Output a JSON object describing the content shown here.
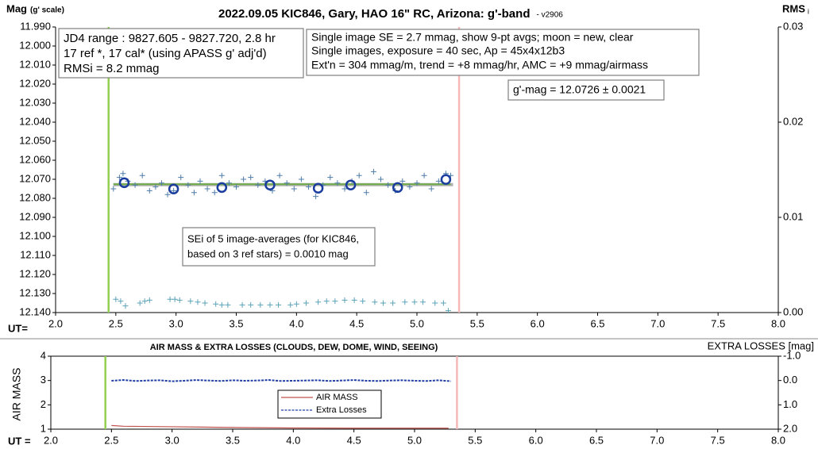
{
  "chart_data": [
    {
      "type": "scatter",
      "title": "2022.09.05 KIC846, Gary, HAO 16\" RC, Arizona: g'-band",
      "subtitle": "- v2906",
      "y_label": "Mag",
      "y_label_note": "(g' scale)",
      "y2_label": "RMS",
      "y2_label_sub": "i",
      "x_label": "UT=",
      "xlim": [
        2.0,
        8.0
      ],
      "xticks": [
        {
          "value": 2.0,
          "label": "2.0"
        },
        2.5,
        {
          "value": 3.0,
          "label": "3.0"
        },
        3.5,
        {
          "value": 4.0,
          "label": "4.0"
        },
        4.5,
        {
          "value": 5.0,
          "label": "5.0"
        },
        5.5,
        {
          "value": 6.0,
          "label": "6.0"
        },
        6.5,
        {
          "value": 7.0,
          "label": "7.0"
        },
        7.5,
        {
          "value": 8.0,
          "label": "8.0"
        }
      ],
      "ylim": [
        11.99,
        12.14
      ],
      "y_inverted": true,
      "yticks": [
        {
          "value": 11.99,
          "label": "11.990"
        },
        {
          "value": 12.0,
          "label": "12.000"
        },
        {
          "value": 12.01,
          "label": "12.010"
        },
        {
          "value": 12.02,
          "label": "12.020"
        },
        {
          "value": 12.03,
          "label": "12.030"
        },
        {
          "value": 12.04,
          "label": "12.040"
        },
        {
          "value": 12.05,
          "label": "12.050"
        },
        {
          "value": 12.06,
          "label": "12.060"
        },
        {
          "value": 12.07,
          "label": "12.070"
        },
        {
          "value": 12.08,
          "label": "12.080"
        },
        {
          "value": 12.09,
          "label": "12.090"
        },
        {
          "value": 12.1,
          "label": "12.100"
        },
        {
          "value": 12.11,
          "label": "12.110"
        },
        {
          "value": 12.12,
          "label": "12.120"
        },
        {
          "value": 12.13,
          "label": "12.130"
        },
        {
          "value": 12.14,
          "label": "12.140"
        }
      ],
      "y2lim": [
        0,
        0.03
      ],
      "y2ticks": [
        {
          "value": 0.03,
          "label": "0.03"
        },
        {
          "value": 0.02,
          "label": "0.02"
        },
        {
          "value": 0.01,
          "label": "0.01"
        },
        {
          "value": 0,
          "label": "0.00"
        }
      ],
      "vlines": [
        {
          "x": 2.44,
          "color": "#92d050"
        },
        {
          "x": 5.35,
          "color": "#f4b8b8"
        }
      ],
      "series": [
        {
          "marker": "line",
          "color": "#b0b0b0",
          "width": 4,
          "x": [
            2.48,
            5.3
          ],
          "values": [
            12.0728,
            12.0728
          ]
        },
        {
          "marker": "line",
          "color": "#70ad47",
          "width": 2,
          "x": [
            2.48,
            5.28
          ],
          "values": [
            12.0726,
            12.0726
          ]
        },
        {
          "marker": "plus",
          "color": "#4f7ca8",
          "x": [
            2.48,
            2.53,
            2.56,
            2.6,
            2.66,
            2.72,
            2.78,
            2.83,
            2.88,
            2.93,
            2.98,
            3.04,
            3.1,
            3.15,
            3.2,
            3.26,
            3.32,
            3.38,
            3.44,
            3.5,
            3.56,
            3.62,
            3.68,
            3.74,
            3.8,
            3.86,
            3.92,
            3.98,
            4.04,
            4.1,
            4.16,
            4.22,
            4.28,
            4.34,
            4.4,
            4.46,
            4.52,
            4.58,
            4.64,
            4.7,
            4.76,
            4.82,
            4.88,
            4.94,
            5.0,
            5.06,
            5.12,
            5.18,
            5.24,
            5.28
          ],
          "values": [
            12.075,
            12.069,
            12.067,
            12.071,
            12.073,
            12.068,
            12.076,
            12.074,
            12.072,
            12.078,
            12.076,
            12.069,
            12.073,
            12.077,
            12.071,
            12.075,
            12.077,
            12.068,
            12.072,
            12.074,
            12.07,
            12.069,
            12.073,
            12.071,
            12.076,
            12.068,
            12.072,
            12.075,
            12.07,
            12.074,
            12.079,
            12.073,
            12.069,
            12.072,
            12.075,
            12.071,
            12.068,
            12.077,
            12.066,
            12.07,
            12.073,
            12.076,
            12.071,
            12.074,
            12.072,
            12.068,
            12.075,
            12.071,
            12.067,
            12.068
          ]
        },
        {
          "marker": "circle",
          "color": "#1a3d9e",
          "x": [
            2.57,
            2.98,
            3.38,
            3.78,
            4.18,
            4.45,
            4.84,
            5.24
          ],
          "values": [
            12.0718,
            12.0751,
            12.0743,
            12.073,
            12.0747,
            12.073,
            12.0743,
            12.0701
          ]
        },
        {
          "marker": "plus",
          "color": "#5ba3b8",
          "axis": "y2",
          "x": [
            2.5,
            2.54,
            2.58,
            2.7,
            2.74,
            2.78,
            2.95,
            2.99,
            3.03,
            3.12,
            3.18,
            3.24,
            3.33,
            3.38,
            3.43,
            3.55,
            3.62,
            3.7,
            3.78,
            3.85,
            3.95,
            4.0,
            4.08,
            4.18,
            4.25,
            4.32,
            4.4,
            4.48,
            4.55,
            4.65,
            4.72,
            4.8,
            4.9,
            4.98,
            5.05,
            5.15,
            5.22,
            5.26
          ],
          "values": [
            0.0014,
            0.0012,
            0.0007,
            0.001,
            0.0012,
            0.0013,
            0.0014,
            0.0014,
            0.0013,
            0.0012,
            0.0011,
            0.001,
            0.0009,
            0.0008,
            0.0008,
            0.0008,
            0.0008,
            0.0008,
            0.0008,
            0.0008,
            0.0008,
            0.0009,
            0.001,
            0.0011,
            0.0012,
            0.0012,
            0.0013,
            0.0013,
            0.0012,
            0.0011,
            0.001,
            0.001,
            0.0011,
            0.0011,
            0.0011,
            0.001,
            0.001,
            0.0002
          ]
        }
      ],
      "annotations": [
        {
          "lines": [
            "JD4 range : 9827.605 - 9827.720,  2.8 hr",
            "17 ref *, 17 cal* (using APASS g' adj'd)",
            "RMSi = 8.2 mmag"
          ]
        },
        {
          "lines": [
            "Single image SE = 2.7 mmag, show  9-pt avgs; moon = new, clear",
            "Single images, exposure = 40 sec, Ap = 45x4x12b3",
            "Ext'n = 304 mmag/m, trend = +8 mmag/hr, AMC = +9 mmag/airmass"
          ]
        },
        {
          "lines": [
            "g'-mag = 12.0726 ± 0.0021"
          ]
        },
        {
          "lines": [
            "SEi of 5 image-averages (for KIC846,",
            "based on 3 ref stars) = 0.0010 mag"
          ]
        }
      ]
    },
    {
      "type": "line",
      "title": "AIR MASS & EXTRA LOSSES (CLOUDS, DEW, DOME, WIND, SEEING)",
      "y_label": "AIR MASS",
      "y2_label": "EXTRA LOSSES [mag]",
      "x_label": "UT =",
      "xlim": [
        2.0,
        8.0
      ],
      "xticks": [
        {
          "value": 2.0,
          "label": "2.0"
        },
        2.5,
        {
          "value": 3.0,
          "label": "3.0"
        },
        3.5,
        {
          "value": 4.0,
          "label": "4.0"
        },
        4.5,
        {
          "value": 5.0,
          "label": "5.0"
        },
        5.5,
        {
          "value": 6.0,
          "label": "6.0"
        },
        6.5,
        {
          "value": 7.0,
          "label": "7.0"
        },
        7.5,
        {
          "value": 8.0,
          "label": "8.0"
        }
      ],
      "ylim": [
        1,
        4
      ],
      "yticks": [
        1,
        2,
        3,
        4
      ],
      "y2lim": [
        -1,
        2
      ],
      "y2_inverted": true,
      "y2ticks": [
        {
          "value": -1,
          "label": "-1.0"
        },
        {
          "value": 0,
          "label": "0.0"
        },
        {
          "value": 1,
          "label": "1.0"
        },
        {
          "value": 2,
          "label": "2.0"
        }
      ],
      "vlines": [
        {
          "x": 2.45,
          "color": "#92d050"
        },
        {
          "x": 5.35,
          "color": "#f4b8b8"
        }
      ],
      "legend": "center",
      "series": [
        {
          "name": "AIR MASS",
          "marker": "line",
          "color": "#c0504d",
          "width": 1.2,
          "x": [
            2.5,
            2.6,
            3.0,
            3.5,
            4.0,
            4.5,
            5.0,
            5.28
          ],
          "values": [
            1.15,
            1.12,
            1.1,
            1.07,
            1.05,
            1.04,
            1.04,
            1.04
          ]
        },
        {
          "name": "Extra Losses",
          "marker": "dashed",
          "color": "#1f3fa6",
          "width": 2,
          "axis": "y2",
          "x": [
            2.5,
            2.6,
            2.7,
            2.8,
            2.9,
            3.0,
            3.1,
            3.2,
            3.3,
            3.4,
            3.5,
            3.6,
            3.7,
            3.8,
            3.9,
            4.0,
            4.1,
            4.2,
            4.3,
            4.4,
            4.5,
            4.6,
            4.7,
            4.8,
            4.9,
            5.0,
            5.1,
            5.2,
            5.3
          ],
          "values": [
            0.01,
            -0.02,
            0.02,
            0.0,
            -0.01,
            0.03,
            0.01,
            -0.02,
            0.0,
            0.02,
            -0.01,
            0.01,
            0.0,
            -0.02,
            0.02,
            0.01,
            0.0,
            -0.01,
            0.02,
            0.0,
            -0.02,
            0.01,
            0.02,
            0.0,
            -0.01,
            0.01,
            0.02,
            -0.01,
            0.03
          ]
        }
      ]
    }
  ]
}
